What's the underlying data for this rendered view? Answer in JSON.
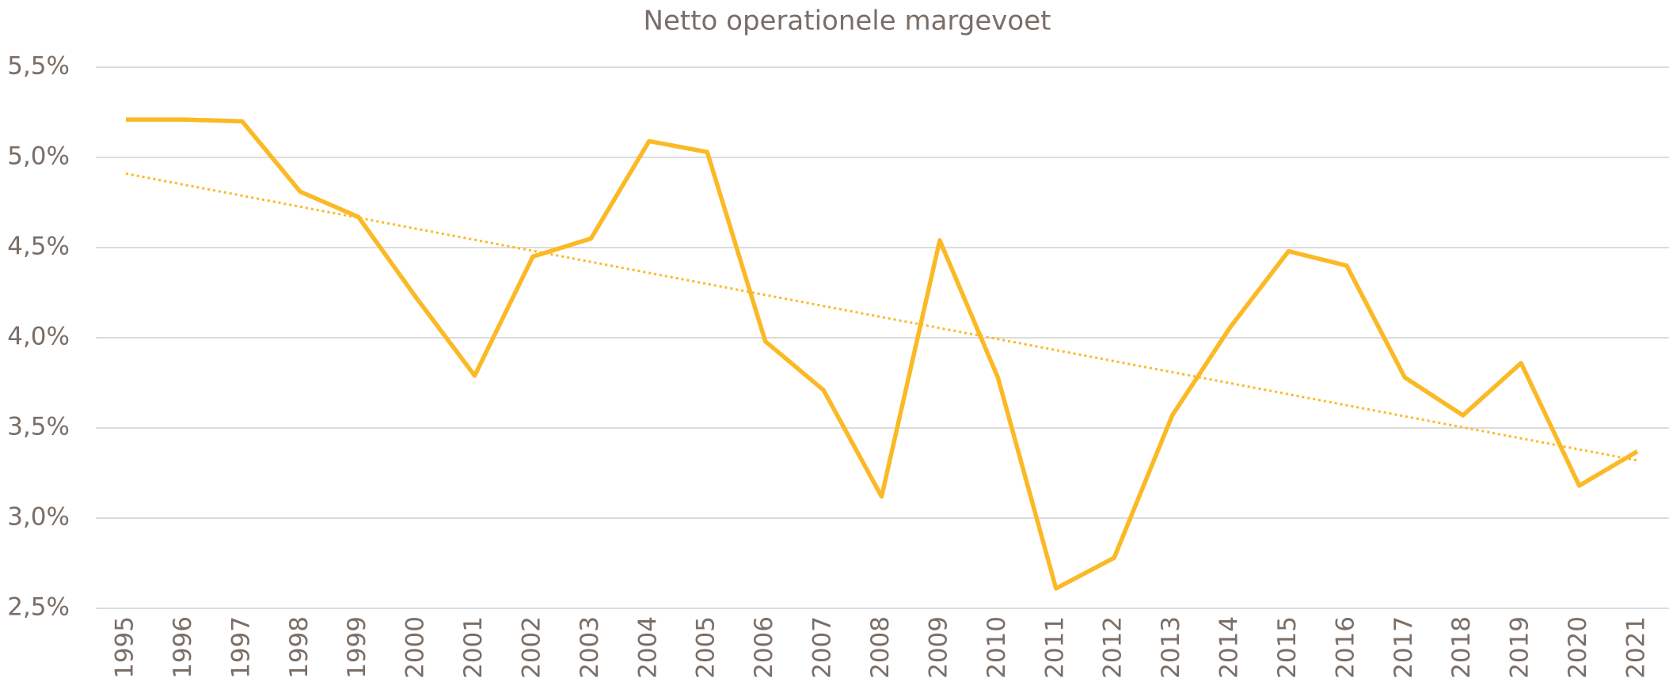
{
  "chart_data": {
    "type": "line",
    "title": "Netto operationele margevoet",
    "categories": [
      "1995",
      "1996",
      "1997",
      "1998",
      "1999",
      "2000",
      "2001",
      "2002",
      "2003",
      "2004",
      "2005",
      "2006",
      "2007",
      "2008",
      "2009",
      "2010",
      "2011",
      "2012",
      "2013",
      "2014",
      "2015",
      "2016",
      "2017",
      "2018",
      "2019",
      "2020",
      "2021"
    ],
    "series": [
      {
        "color": "#fbb925",
        "values": [
          5.21,
          5.21,
          5.2,
          4.81,
          4.67,
          4.22,
          3.79,
          4.45,
          4.55,
          5.09,
          5.03,
          3.98,
          3.71,
          3.12,
          4.54,
          3.78,
          2.61,
          2.78,
          3.57,
          4.06,
          4.48,
          4.4,
          3.78,
          3.57,
          3.86,
          3.18,
          3.37
        ]
      }
    ],
    "trendline": {
      "color": "#fbb925",
      "values": [
        4.91,
        3.32
      ]
    },
    "ylim": [
      2.5,
      5.5
    ],
    "yticks": [
      {
        "value": 2.5,
        "label": "2,5%"
      },
      {
        "value": 3.0,
        "label": "3,0%"
      },
      {
        "value": 3.5,
        "label": "3,5%"
      },
      {
        "value": 4.0,
        "label": "4,0%"
      },
      {
        "value": 4.5,
        "label": "4,5%"
      },
      {
        "value": 5.0,
        "label": "5,0%"
      },
      {
        "value": 5.5,
        "label": "5,5%"
      }
    ],
    "grid": true
  }
}
